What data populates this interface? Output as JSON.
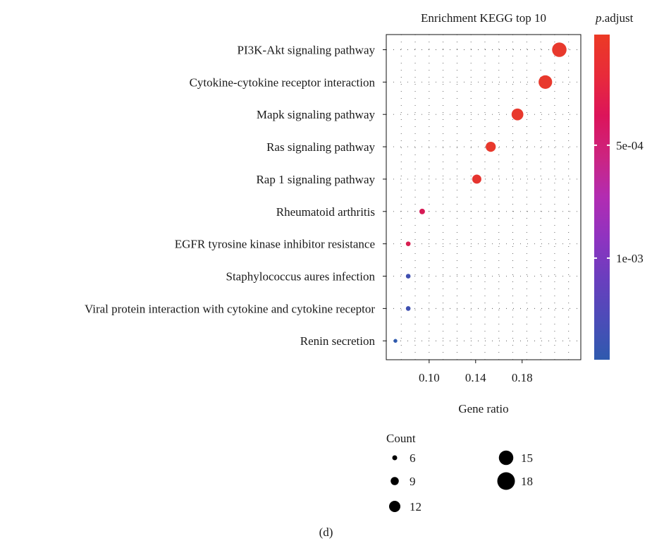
{
  "chart_data": {
    "type": "scatter",
    "title": "Enrichment KEGG top 10",
    "xlabel": "Gene ratio",
    "ylabel": "",
    "xlim": [
      0.071,
      0.222
    ],
    "xticks": [
      0.1,
      0.14,
      0.18
    ],
    "xtick_labels": [
      "0.10",
      "0.14",
      "0.18"
    ],
    "grid": true,
    "categories": [
      "PI3K-Akt signaling pathway",
      "Cytokine-cytokine receptor interaction",
      "Mapk signaling pathway",
      "Ras signaling pathway",
      "Rap 1 signaling pathway",
      "Rheumatoid arthritis",
      "EGFR tyrosine kinase inhibitor resistance",
      "Staphylococcus aures infection",
      "Viral protein interaction with cytokine and cytokine receptor",
      "Renin secretion"
    ],
    "points": [
      {
        "term": "PI3K-Akt signaling pathway",
        "gene_ratio": 0.212,
        "count": 18,
        "color": "#E8392D"
      },
      {
        "term": "Cytokine-cytokine receptor interaction",
        "gene_ratio": 0.2,
        "count": 17,
        "color": "#E8392D"
      },
      {
        "term": "Mapk signaling pathway",
        "gene_ratio": 0.176,
        "count": 15,
        "color": "#E8392D"
      },
      {
        "term": "Ras signaling pathway",
        "gene_ratio": 0.153,
        "count": 13,
        "color": "#E8392D"
      },
      {
        "term": "Rap 1 signaling pathway",
        "gene_ratio": 0.141,
        "count": 12,
        "color": "#E5342F"
      },
      {
        "term": "Rheumatoid arthritis",
        "gene_ratio": 0.094,
        "count": 8,
        "color": "#D61A55"
      },
      {
        "term": "EGFR tyrosine kinase inhibitor resistance",
        "gene_ratio": 0.082,
        "count": 7,
        "color": "#D81E50"
      },
      {
        "term": "Staphylococcus aures infection",
        "gene_ratio": 0.082,
        "count": 7,
        "color": "#3F4FB0"
      },
      {
        "term": "Viral protein interaction with cytokine and cytokine receptor",
        "gene_ratio": 0.082,
        "count": 7,
        "color": "#3E4FB0"
      },
      {
        "term": "Renin secretion",
        "gene_ratio": 0.071,
        "count": 6,
        "color": "#2F5AAE"
      }
    ],
    "color_legend": {
      "title_italic": "p",
      "title_rest": ".adjust",
      "ticks": [
        {
          "value": 0.0005,
          "label": "5e-04"
        },
        {
          "value": 0.001,
          "label": "1e-03"
        }
      ],
      "range": [
        1e-05,
        0.00145
      ],
      "stops": [
        "#EC3A25",
        "#E82B3A",
        "#DC145A",
        "#CC2480",
        "#B22CB2",
        "#8F33C0",
        "#6A3EBE",
        "#4C4CB8",
        "#2F5AAE"
      ]
    },
    "size_legend": {
      "title": "Count",
      "items": [
        {
          "count": 6,
          "label": "6"
        },
        {
          "count": 9,
          "label": "9"
        },
        {
          "count": 12,
          "label": "12"
        },
        {
          "count": 15,
          "label": "15"
        },
        {
          "count": 18,
          "label": "18"
        }
      ]
    }
  },
  "figure": {
    "panel_label": "(d)"
  }
}
